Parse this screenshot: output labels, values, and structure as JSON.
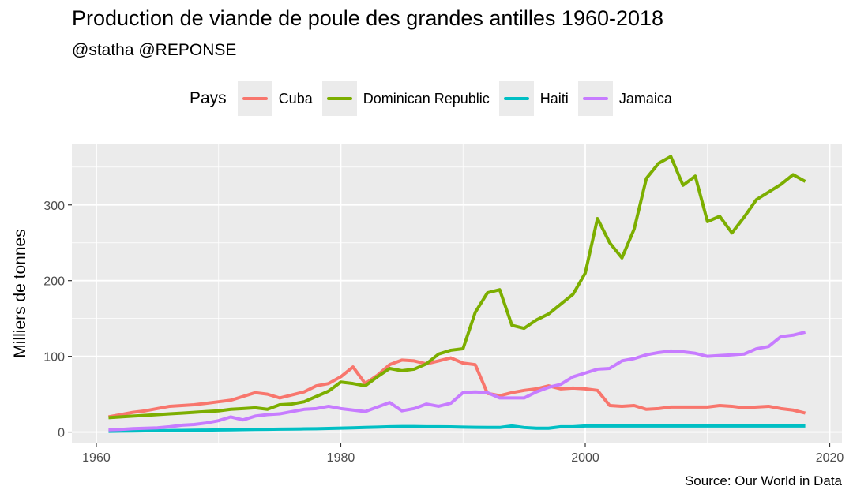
{
  "chart_data": {
    "type": "line",
    "title": "Production de viande de poule des grandes antilles 1960-2018",
    "subtitle": "@statha @REPONSE",
    "caption": "Source: Our World in Data",
    "ylabel": "Milliers de tonnes",
    "xlabel": "",
    "xlim": [
      1958,
      2021
    ],
    "ylim": [
      -14,
      380
    ],
    "xticks": [
      1960,
      1980,
      2000,
      2020
    ],
    "yticks": [
      0,
      100,
      200,
      300
    ],
    "grid": true,
    "legend": {
      "title": "Pays",
      "position": "top"
    },
    "series": [
      {
        "name": "Cuba",
        "color": "#F8766D",
        "x": [
          1961,
          1962,
          1963,
          1964,
          1965,
          1966,
          1967,
          1968,
          1969,
          1970,
          1971,
          1972,
          1973,
          1974,
          1975,
          1976,
          1977,
          1978,
          1979,
          1980,
          1981,
          1982,
          1983,
          1984,
          1985,
          1986,
          1987,
          1988,
          1989,
          1990,
          1991,
          1992,
          1993,
          1994,
          1995,
          1996,
          1997,
          1998,
          1999,
          2000,
          2001,
          2002,
          2003,
          2004,
          2005,
          2006,
          2007,
          2008,
          2009,
          2010,
          2011,
          2012,
          2013,
          2014,
          2015,
          2016,
          2017,
          2018
        ],
        "values": [
          20,
          23,
          26,
          28,
          31,
          34,
          35,
          36,
          38,
          40,
          42,
          47,
          52,
          50,
          45,
          49,
          53,
          61,
          64,
          73,
          86,
          64,
          75,
          89,
          95,
          94,
          90,
          94,
          98,
          91,
          89,
          51,
          48,
          52,
          55,
          57,
          61,
          57,
          58,
          57,
          55,
          35,
          34,
          35,
          30,
          31,
          33,
          33,
          33,
          33,
          35,
          34,
          32,
          33,
          34,
          31,
          29,
          25
        ]
      },
      {
        "name": "Dominican Republic",
        "color": "#7CAE00",
        "x": [
          1961,
          1962,
          1963,
          1964,
          1965,
          1966,
          1967,
          1968,
          1969,
          1970,
          1971,
          1972,
          1973,
          1974,
          1975,
          1976,
          1977,
          1978,
          1979,
          1980,
          1981,
          1982,
          1983,
          1984,
          1985,
          1986,
          1987,
          1988,
          1989,
          1990,
          1991,
          1992,
          1993,
          1994,
          1995,
          1996,
          1997,
          1998,
          1999,
          2000,
          2001,
          2002,
          2003,
          2004,
          2005,
          2006,
          2007,
          2008,
          2009,
          2010,
          2011,
          2012,
          2013,
          2014,
          2015,
          2016,
          2017,
          2018
        ],
        "values": [
          19,
          20,
          21,
          22,
          23,
          24,
          25,
          26,
          27,
          28,
          30,
          31,
          32,
          30,
          36,
          37,
          40,
          47,
          54,
          66,
          64,
          61,
          73,
          84,
          81,
          83,
          90,
          103,
          108,
          110,
          158,
          184,
          188,
          141,
          137,
          148,
          156,
          169,
          182,
          210,
          282,
          250,
          230,
          268,
          335,
          355,
          364,
          326,
          338,
          278,
          285,
          263,
          284,
          307,
          317,
          327,
          340,
          331
        ]
      },
      {
        "name": "Haiti",
        "color": "#00BFC4",
        "x": [
          1961,
          1962,
          1963,
          1964,
          1965,
          1966,
          1967,
          1968,
          1969,
          1970,
          1971,
          1972,
          1973,
          1974,
          1975,
          1976,
          1977,
          1978,
          1979,
          1980,
          1981,
          1982,
          1983,
          1984,
          1985,
          1986,
          1987,
          1988,
          1989,
          1990,
          1991,
          1992,
          1993,
          1994,
          1995,
          1996,
          1997,
          1998,
          1999,
          2000,
          2001,
          2002,
          2003,
          2004,
          2005,
          2006,
          2007,
          2008,
          2009,
          2010,
          2011,
          2012,
          2013,
          2014,
          2015,
          2016,
          2017,
          2018
        ],
        "values": [
          1,
          1.2,
          1.4,
          1.6,
          1.8,
          2,
          2.2,
          2.4,
          2.6,
          2.8,
          3,
          3.2,
          3.4,
          3.6,
          3.8,
          4,
          4.2,
          4.4,
          4.8,
          5.2,
          5.6,
          6,
          6.5,
          7,
          7.2,
          7.2,
          7,
          7,
          6.8,
          6.5,
          6.2,
          6,
          6,
          8,
          6,
          5,
          5,
          7,
          7,
          8,
          8,
          8,
          8,
          8,
          8,
          8,
          8,
          8,
          8,
          8,
          8,
          8,
          8,
          8,
          8,
          8,
          8,
          8
        ]
      },
      {
        "name": "Jamaica",
        "color": "#C77CFF",
        "x": [
          1961,
          1962,
          1963,
          1964,
          1965,
          1966,
          1967,
          1968,
          1969,
          1970,
          1971,
          1972,
          1973,
          1974,
          1975,
          1976,
          1977,
          1978,
          1979,
          1980,
          1981,
          1982,
          1983,
          1984,
          1985,
          1986,
          1987,
          1988,
          1989,
          1990,
          1991,
          1992,
          1993,
          1994,
          1995,
          1996,
          1997,
          1998,
          1999,
          2000,
          2001,
          2002,
          2003,
          2004,
          2005,
          2006,
          2007,
          2008,
          2009,
          2010,
          2011,
          2012,
          2013,
          2014,
          2015,
          2016,
          2017,
          2018
        ],
        "values": [
          3,
          3.5,
          4.5,
          5,
          5.5,
          7,
          9,
          10,
          12,
          15,
          20,
          16,
          21,
          23,
          24,
          27,
          30,
          31,
          34,
          31,
          29,
          27,
          33,
          39,
          28,
          31,
          37,
          34,
          38,
          52,
          53,
          52,
          45,
          45,
          45,
          53,
          59,
          63,
          73,
          78,
          83,
          84,
          94,
          97,
          102,
          105,
          107,
          106,
          104,
          100,
          101,
          102,
          103,
          110,
          113,
          126,
          128,
          132
        ]
      }
    ]
  }
}
